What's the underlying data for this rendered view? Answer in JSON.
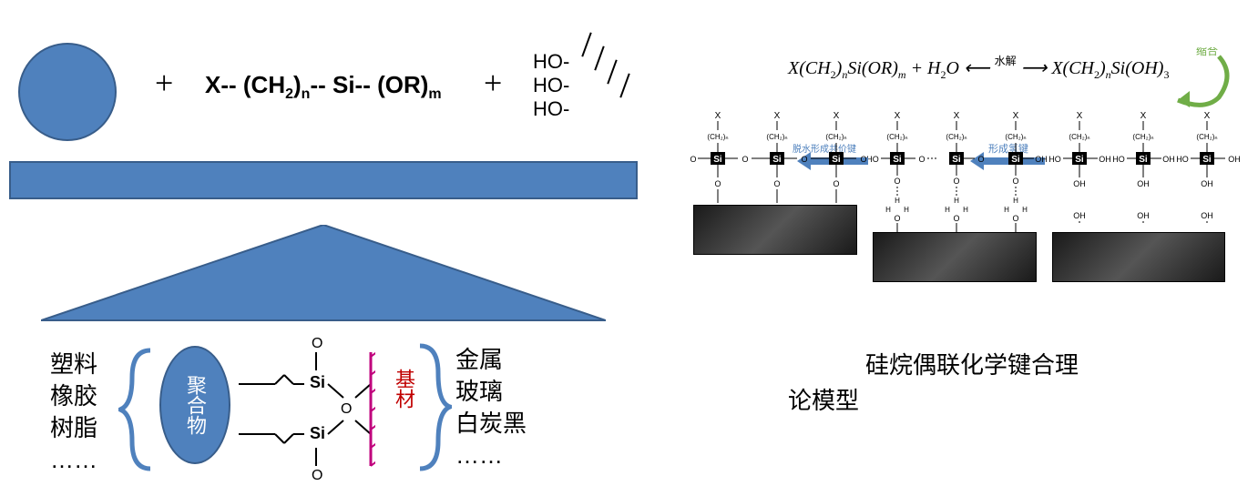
{
  "colors": {
    "blue": "#4f81bd",
    "blueBorder": "#385d8a",
    "red": "#c00000",
    "magenta": "#c0007c",
    "green": "#70ad47"
  },
  "left": {
    "plus1": "+",
    "formula_x": "X-- (CH",
    "formula_sub1": "2",
    "formula_mid": ")",
    "formula_subn": "n",
    "formula_si": "--  Si-- (OR)",
    "formula_subm": "m",
    "plus2": "+",
    "ho1": "HO-",
    "ho2": "HO-",
    "ho3": "HO-",
    "polymer_label": "聚合物",
    "polymer_list": [
      "塑料",
      "橡胶",
      "树脂",
      "……"
    ],
    "substrate_label": "基材",
    "substrate_list": [
      "金属",
      "玻璃",
      "白炭黑",
      "……"
    ],
    "si_top": "O",
    "si_si": "Si",
    "si_o": "O"
  },
  "right": {
    "eqn_p1": "X(CH",
    "eqn_s1": "2",
    "eqn_p2": ")",
    "eqn_sn": "n",
    "eqn_p3": "Si(OR)",
    "eqn_sm": "m",
    "eqn_p4": " + H",
    "eqn_s2": "2",
    "eqn_p5": "O ⟵",
    "hydrolysis": "水解",
    "eqn_arrow": "⟶",
    "eqn_p6": " X(CH",
    "eqn_s3": "2",
    "eqn_p7": ")",
    "eqn_sn2": "n",
    "eqn_p8": "Si(OH)",
    "eqn_s4": "3",
    "condensation": "缩合",
    "col_x": "X",
    "col_ch2n": "(CH₂)ₙ",
    "col_si": "Si",
    "col_o": "O",
    "col_oh": "OH",
    "covalent": "脱水形成共价键",
    "hbond": "形成氢键",
    "caption": "硅烷偶联化学键合理论模型"
  }
}
